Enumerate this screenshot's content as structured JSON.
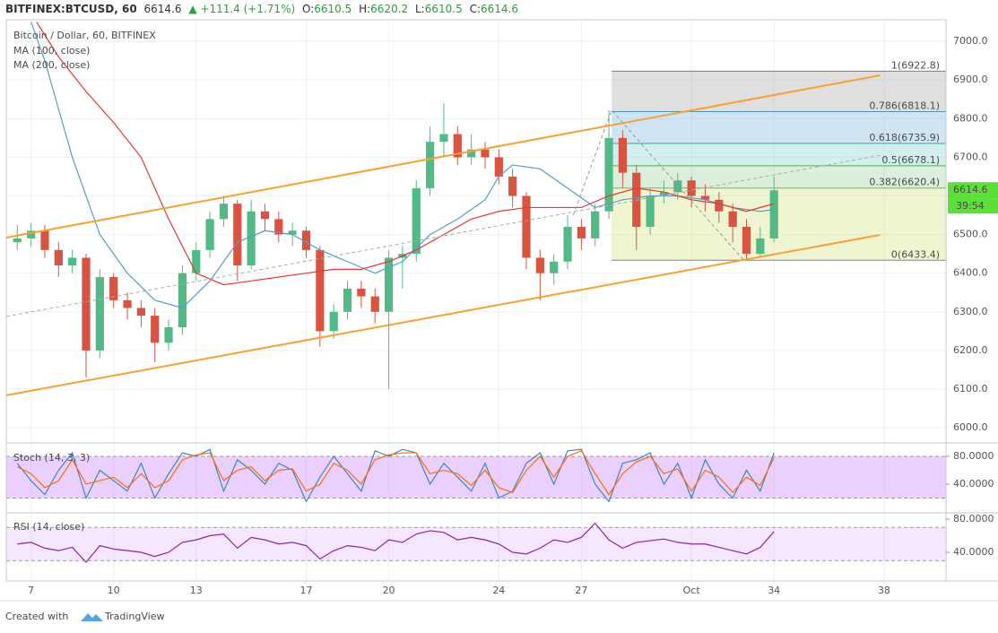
{
  "header": {
    "symbol": "BITFINEX:BTCUSD, 60",
    "price": 6614.6,
    "arrow": "▲",
    "change": "+111.4 (+1.71%)",
    "o_label": "O:",
    "o": 6610.5,
    "h_label": "H:",
    "h": 6620.2,
    "l_label": "L:",
    "l": 6610.5,
    "c_label": "C:",
    "c": 6614.6
  },
  "footer": {
    "created": "Created with",
    "brand": "TradingView"
  },
  "chart_data": [
    {
      "type": "candlestick",
      "title": "Bitcoin / Dollar, 60, BITFINEX",
      "x": [
        6.5,
        7,
        7.5,
        8,
        8.5,
        9,
        9.5,
        10,
        10.5,
        11,
        11.5,
        12,
        12.5,
        13,
        13.5,
        14,
        14.5,
        15,
        15.5,
        16,
        16.5,
        17,
        17.5,
        18,
        18.5,
        19,
        19.5,
        20,
        20.5,
        21,
        21.5,
        22,
        22.5,
        23,
        23.5,
        24,
        24.5,
        25,
        25.5,
        26,
        26.5,
        27,
        27.5,
        28,
        28.5,
        29,
        29.5,
        30,
        30.5,
        31,
        31.5,
        32,
        32.5,
        33,
        33.5,
        34
      ],
      "open": [
        6480,
        6490,
        6510,
        6460,
        6420,
        6440,
        6200,
        6390,
        6330,
        6310,
        6290,
        6220,
        6260,
        6400,
        6460,
        6540,
        6580,
        6420,
        6560,
        6540,
        6500,
        6510,
        6460,
        6250,
        6300,
        6360,
        6340,
        6300,
        6440,
        6450,
        6620,
        6740,
        6760,
        6700,
        6720,
        6700,
        6650,
        6600,
        6440,
        6400,
        6430,
        6520,
        6490,
        6560,
        6750,
        6660,
        6520,
        6600,
        6610,
        6640,
        6600,
        6590,
        6560,
        6520,
        6450,
        6490
      ],
      "high": [
        6525,
        6530,
        6525,
        6480,
        6460,
        6450,
        6410,
        6400,
        6350,
        6330,
        6310,
        6280,
        6420,
        6480,
        6560,
        6600,
        6590,
        6590,
        6580,
        6560,
        6530,
        6520,
        6470,
        6320,
        6380,
        6380,
        6360,
        6460,
        6470,
        6640,
        6780,
        6840,
        6780,
        6760,
        6740,
        6720,
        6670,
        6610,
        6460,
        6450,
        6550,
        6540,
        6580,
        6822,
        6770,
        6680,
        6620,
        6640,
        6660,
        6650,
        6630,
        6610,
        6580,
        6540,
        6520,
        6650
      ],
      "low": [
        6460,
        6470,
        6440,
        6390,
        6400,
        6130,
        6180,
        6310,
        6280,
        6260,
        6170,
        6200,
        6240,
        6380,
        6440,
        6520,
        6380,
        6410,
        6510,
        6480,
        6470,
        6440,
        6210,
        6230,
        6280,
        6310,
        6270,
        6100,
        6360,
        6430,
        6600,
        6700,
        6680,
        6680,
        6670,
        6630,
        6570,
        6410,
        6330,
        6370,
        6410,
        6460,
        6470,
        6540,
        6620,
        6460,
        6500,
        6580,
        6590,
        6570,
        6560,
        6530,
        6480,
        6433.4,
        6440,
        6480
      ],
      "close": [
        6490,
        6510,
        6460,
        6420,
        6440,
        6200,
        6390,
        6330,
        6310,
        6290,
        6220,
        6260,
        6400,
        6460,
        6540,
        6580,
        6420,
        6560,
        6540,
        6500,
        6510,
        6460,
        6250,
        6300,
        6360,
        6340,
        6300,
        6440,
        6450,
        6620,
        6740,
        6760,
        6700,
        6720,
        6700,
        6650,
        6600,
        6440,
        6400,
        6430,
        6520,
        6490,
        6560,
        6750,
        6660,
        6520,
        6600,
        6610,
        6640,
        6600,
        6590,
        6560,
        6520,
        6450,
        6490,
        6614.6
      ],
      "up_color": "#53b987",
      "down_color": "#d75442",
      "xlim": [
        6.1,
        40.25
      ],
      "xticks": [
        7,
        10,
        13,
        17,
        20,
        24,
        27,
        {
          "value": 31,
          "label": "Oct"
        },
        34,
        38
      ],
      "ylim": [
        5963,
        7056
      ],
      "yticks": [
        {
          "value": 6000,
          "label": "6000.0"
        },
        {
          "value": 6100,
          "label": "6100.0"
        },
        {
          "value": 6200,
          "label": "6200.0"
        },
        {
          "value": 6300,
          "label": "6300.0"
        },
        {
          "value": 6400,
          "label": "6400.0"
        },
        {
          "value": 6500,
          "label": "6500.0"
        },
        {
          "value": 6600,
          "label": "6600.0"
        },
        {
          "value": 6700,
          "label": "6700.0"
        },
        {
          "value": 6800,
          "label": "6800.0"
        },
        {
          "value": 6900,
          "label": "6900.0"
        },
        {
          "value": 7000,
          "label": "7000.0"
        }
      ],
      "grid": true,
      "series": [
        {
          "name": "MA (100, close)",
          "color": "#5b9cc2",
          "x": [
            7,
            7.5,
            8.5,
            9.5,
            10.5,
            11.5,
            12.5,
            13.5,
            14.5,
            15.5,
            16.5,
            17.5,
            18.5,
            19.5,
            20.5,
            21.5,
            22.5,
            23.5,
            24,
            24.5,
            25.5,
            26.5,
            27.5,
            28.5,
            29.5,
            30.5,
            31.5,
            32.5,
            33.5,
            34
          ],
          "values": [
            7050,
            6950,
            6700,
            6500,
            6400,
            6330,
            6310,
            6380,
            6480,
            6510,
            6500,
            6460,
            6430,
            6400,
            6430,
            6500,
            6540,
            6590,
            6650,
            6680,
            6670,
            6620,
            6570,
            6590,
            6600,
            6600,
            6590,
            6570,
            6560,
            6565
          ]
        },
        {
          "name": "MA (200, close)",
          "color": "#e53935",
          "x": [
            7.2,
            8,
            9,
            10,
            11,
            12,
            13,
            14,
            15,
            16,
            17,
            18,
            19,
            20,
            21,
            22,
            23,
            24,
            25,
            26,
            27,
            28,
            29,
            30,
            31,
            32,
            33,
            34
          ],
          "values": [
            7050,
            6960,
            6870,
            6790,
            6700,
            6540,
            6400,
            6370,
            6380,
            6390,
            6400,
            6410,
            6410,
            6430,
            6460,
            6500,
            6540,
            6560,
            6570,
            6570,
            6570,
            6600,
            6620,
            6610,
            6590,
            6580,
            6560,
            6580
          ]
        }
      ],
      "lines": [
        {
          "color": "#f7a035",
          "dashed": false,
          "x": [
            6.1,
            37.85
          ],
          "y": [
            6492,
            6912
          ]
        },
        {
          "color": "#f7a035",
          "dashed": false,
          "x": [
            6.1,
            37.85
          ],
          "y": [
            6084,
            6499
          ]
        },
        {
          "color": "#aaaaaa",
          "dashed": true,
          "x": [
            6.1,
            37.85
          ],
          "y": [
            6288,
            6705
          ]
        },
        {
          "color": "#999999",
          "dashed": true,
          "x": [
            26.7,
            28.1,
            32.9
          ],
          "y": [
            6550,
            6822,
            6433.4
          ]
        }
      ],
      "fib": {
        "x": [
          28.1,
          40.25
        ],
        "levels": [
          {
            "value": 6922.8,
            "label": "1(6922.8)",
            "color": "#808080"
          },
          {
            "value": 6818.1,
            "label": "0.786(6818.1)",
            "color": "#4a90b8"
          },
          {
            "value": 6735.9,
            "label": "0.618(6735.9)",
            "color": "#2aa8a0"
          },
          {
            "value": 6678.1,
            "label": "0.5(6678.1)",
            "color": "#4caf50"
          },
          {
            "value": 6620.4,
            "label": "0.382(6620.4)",
            "color": "#7cb342"
          },
          {
            "value": 6433.4,
            "label": "0(6433.4)",
            "color": "#808080"
          }
        ],
        "fills": [
          "rgba(128,128,128,0.25)",
          "rgba(66,150,210,0.25)",
          "rgba(42,180,170,0.2)",
          "rgba(76,175,80,0.2)",
          "rgba(190,215,70,0.25)"
        ]
      },
      "last_price": 6614.6,
      "last_price_color": "#5dde3a",
      "countdown": "39:54"
    },
    {
      "type": "line",
      "title": "Stoch (14, 3, 3)",
      "x": [
        6.5,
        7,
        7.5,
        8,
        8.5,
        9,
        9.5,
        10,
        10.5,
        11,
        11.5,
        12,
        12.5,
        13,
        13.5,
        14,
        14.5,
        15,
        15.5,
        16,
        16.5,
        17,
        17.5,
        18,
        18.5,
        19,
        19.5,
        20,
        20.5,
        21,
        21.5,
        22,
        22.5,
        23,
        23.5,
        24,
        24.5,
        25,
        25.5,
        26,
        26.5,
        27,
        27.5,
        28,
        28.5,
        29,
        29.5,
        30,
        30.5,
        31,
        31.5,
        32,
        32.5,
        33,
        33.5,
        34
      ],
      "series": [
        {
          "color": "#3d85c6",
          "values": [
            70,
            45,
            25,
            60,
            85,
            20,
            60,
            45,
            30,
            70,
            20,
            55,
            85,
            80,
            90,
            30,
            75,
            60,
            40,
            70,
            60,
            15,
            50,
            80,
            55,
            30,
            88,
            80,
            90,
            85,
            40,
            70,
            50,
            30,
            70,
            20,
            30,
            70,
            85,
            40,
            88,
            90,
            40,
            15,
            70,
            75,
            85,
            40,
            70,
            20,
            75,
            40,
            20,
            60,
            30,
            85
          ]
        },
        {
          "color": "#ff6d00",
          "values": [
            65,
            55,
            35,
            45,
            75,
            40,
            45,
            50,
            35,
            55,
            35,
            45,
            75,
            82,
            85,
            45,
            60,
            65,
            45,
            60,
            62,
            30,
            40,
            70,
            60,
            40,
            75,
            82,
            85,
            85,
            55,
            60,
            55,
            38,
            60,
            35,
            28,
            60,
            80,
            50,
            80,
            88,
            55,
            25,
            55,
            72,
            80,
            55,
            62,
            30,
            60,
            50,
            28,
            50,
            38,
            78
          ]
        }
      ],
      "ylim": [
        0,
        98
      ],
      "yticks": [
        {
          "value": 40,
          "label": "40.0000"
        },
        {
          "value": 80,
          "label": "80.0000"
        }
      ],
      "band": [
        20,
        80
      ],
      "band_color": "rgba(153,21,255,0.2)"
    },
    {
      "type": "line",
      "title": "RSI (14, close)",
      "x": [
        6.5,
        7,
        7.5,
        8,
        8.5,
        9,
        9.5,
        10,
        10.5,
        11,
        11.5,
        12,
        12.5,
        13,
        13.5,
        14,
        14.5,
        15,
        15.5,
        16,
        16.5,
        17,
        17.5,
        18,
        18.5,
        19,
        19.5,
        20,
        20.5,
        21,
        21.5,
        22,
        22.5,
        23,
        23.5,
        24,
        24.5,
        25,
        25.5,
        26,
        26.5,
        27,
        27.5,
        28,
        28.5,
        29,
        29.5,
        30,
        30.5,
        31,
        31.5,
        32,
        32.5,
        33,
        33.5,
        34
      ],
      "series": [
        {
          "color": "#8e24aa",
          "values": [
            50,
            52,
            45,
            42,
            46,
            28,
            48,
            44,
            42,
            40,
            35,
            40,
            52,
            55,
            60,
            62,
            45,
            58,
            55,
            50,
            52,
            48,
            32,
            42,
            48,
            46,
            42,
            55,
            52,
            62,
            66,
            64,
            55,
            58,
            55,
            50,
            40,
            38,
            45,
            55,
            52,
            58,
            75,
            55,
            45,
            52,
            54,
            56,
            52,
            50,
            50,
            46,
            42,
            38,
            46,
            65
          ]
        }
      ],
      "ylim": [
        5.4,
        86.5
      ],
      "yticks": [
        {
          "value": 40,
          "label": "40.0000"
        },
        {
          "value": 80,
          "label": "80.0000"
        }
      ],
      "band": [
        30,
        70
      ],
      "band_color": "rgba(153,21,255,0.1)"
    }
  ]
}
